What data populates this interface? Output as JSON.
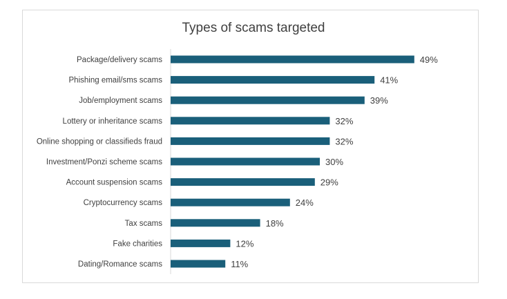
{
  "chart_data": {
    "type": "bar",
    "orientation": "horizontal",
    "title": "Types of scams targeted",
    "xlabel": "",
    "ylabel": "",
    "value_suffix": "%",
    "xlim": [
      0,
      50
    ],
    "grid": false,
    "legend": "none",
    "categories": [
      "Package/delivery scams",
      "Phishing email/sms scams",
      "Job/employment scams",
      "Lottery or inheritance scams",
      "Online shopping or classifieds fraud",
      "Investment/Ponzi scheme scams",
      "Account suspension scams",
      "Cryptocurrency scams",
      "Tax scams",
      "Fake charities",
      "Dating/Romance scams"
    ],
    "values": [
      49,
      41,
      39,
      32,
      32,
      30,
      29,
      24,
      18,
      12,
      11
    ],
    "data_labels": [
      "49%",
      "41%",
      "39%",
      "32%",
      "32%",
      "30%",
      "29%",
      "24%",
      "18%",
      "12%",
      "11%"
    ],
    "colors": {
      "bar": "#1a5f7a",
      "axis": "#d9d9d9",
      "text": "#404040"
    }
  }
}
